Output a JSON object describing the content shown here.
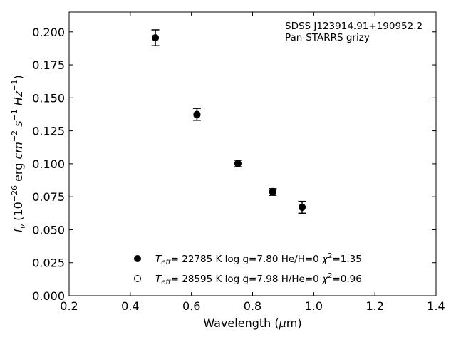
{
  "chart_data": {
    "type": "scatter",
    "xlabel": "Wavelength (μm)",
    "ylabel": "f_ν (10^-26 erg cm^-2 s^-1 Hz^-1)",
    "xlim": [
      0.2,
      1.4
    ],
    "ylim": [
      0.0,
      0.215
    ],
    "xticks": [
      0.2,
      0.4,
      0.6,
      0.8,
      1.0,
      1.2,
      1.4
    ],
    "xtick_labels": [
      "0.2",
      "0.4",
      "0.6",
      "0.8",
      "1.0",
      "1.2",
      "1.4"
    ],
    "yticks": [
      0.0,
      0.025,
      0.05,
      0.075,
      0.1,
      0.125,
      0.15,
      0.175,
      0.2
    ],
    "ytick_labels": [
      "0.000",
      "0.025",
      "0.050",
      "0.075",
      "0.100",
      "0.125",
      "0.150",
      "0.175",
      "0.200"
    ],
    "grid": false,
    "annotation": [
      "SDSS J123914.91+190952.2",
      "Pan-STARRS grizy"
    ],
    "series": [
      {
        "name": "Teff= 22785 K  log g=7.80  He/H=0  χ2=1.35",
        "marker": "filled-circle",
        "x": [
          0.482,
          0.618,
          0.752,
          0.866,
          0.962
        ],
        "y": [
          0.1955,
          0.1375,
          0.1002,
          0.0786,
          0.067
        ],
        "yerr": [
          0.006,
          0.0045,
          0.0025,
          0.0025,
          0.0045
        ]
      },
      {
        "name": "Teff= 28595 K  log g=7.98  H/He=0  χ2=0.96",
        "marker": "open-circle",
        "x": [
          0.482,
          0.618,
          0.752,
          0.866,
          0.962
        ],
        "y": [
          0.1955,
          0.137,
          0.1002,
          0.079,
          0.067
        ]
      }
    ],
    "legend_placement": "lower-center"
  }
}
